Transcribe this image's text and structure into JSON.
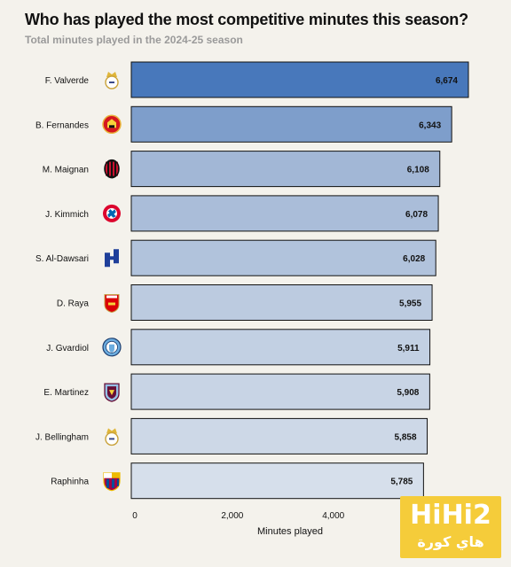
{
  "chart_data": {
    "type": "bar",
    "orientation": "horizontal",
    "title": "Who has played the most competitive minutes this season?",
    "subtitle": "Total minutes played in the 2024-25 season",
    "xlabel": "Minutes played",
    "xlim": [
      0,
      6674
    ],
    "xticks": [
      0,
      2000,
      4000
    ],
    "xtick_labels": [
      "0",
      "2,000",
      "4,000"
    ],
    "categories": [
      "F. Valverde",
      "B. Fernandes",
      "M. Maignan",
      "J. Kimmich",
      "S. Al-Dawsari",
      "D. Raya",
      "J. Gvardiol",
      "E. Martinez",
      "J. Bellingham",
      "Raphinha"
    ],
    "values": [
      6674,
      6343,
      6108,
      6078,
      6028,
      5955,
      5911,
      5908,
      5858,
      5785
    ],
    "value_labels": [
      "6,674",
      "6,343",
      "6,108",
      "6,078",
      "6,028",
      "5,955",
      "5,911",
      "5,908",
      "5,858",
      "5,785"
    ],
    "club_icons": [
      "real-madrid-crest-icon",
      "manchester-united-crest-icon",
      "ac-milan-crest-icon",
      "bayern-munich-crest-icon",
      "al-hilal-crest-icon",
      "arsenal-crest-icon",
      "manchester-city-crest-icon",
      "aston-villa-crest-icon",
      "real-madrid-crest-icon",
      "barcelona-crest-icon"
    ],
    "bar_colors": [
      "#4878bb",
      "#7e9ecb",
      "#a2b7d6",
      "#aabdd9",
      "#b1c3dc",
      "#bccbe0",
      "#c2d0e3",
      "#c8d4e5",
      "#cdd8e7",
      "#d6dfeb"
    ],
    "grid": false
  },
  "watermark": {
    "top_text": "HiHi2",
    "bottom_text": "هاي كورة"
  }
}
